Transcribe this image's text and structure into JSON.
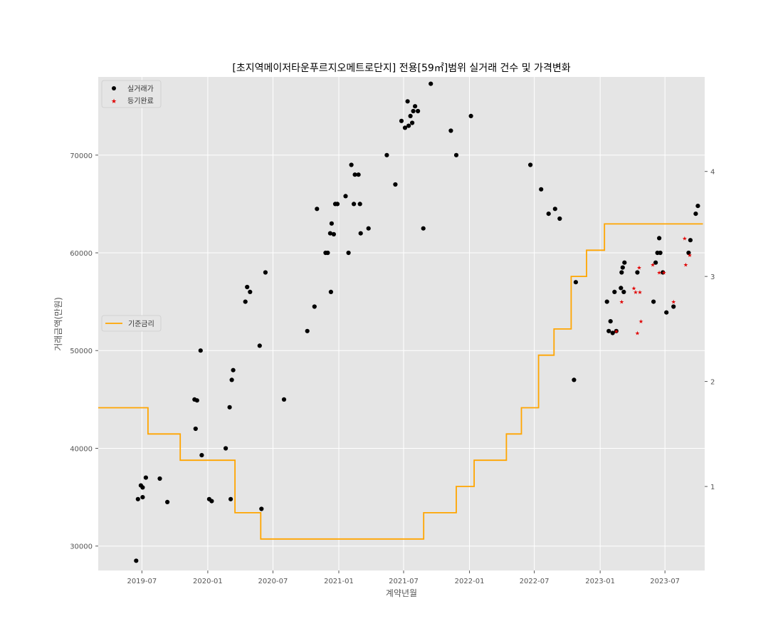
{
  "chart_data": {
    "type": "scatter",
    "title": "[초지역메이저타운푸르지오메트로단지] 전용[59㎡]범위 실거래 건수 및 가격변화",
    "xlabel": "계약년월",
    "ylabel": "거래금액(만원)",
    "x_range": [
      "2019-03-01",
      "2023-10-20"
    ],
    "ylim": [
      27500,
      78000
    ],
    "y2lim": [
      0.2,
      4.9
    ],
    "grid": true,
    "x_ticks": [
      "2019-07",
      "2020-01",
      "2020-07",
      "2021-01",
      "2021-07",
      "2022-01",
      "2022-07",
      "2023-01",
      "2023-07"
    ],
    "y_ticks": [
      30000,
      40000,
      50000,
      60000,
      70000
    ],
    "y2_ticks": [
      1,
      2,
      3,
      4
    ],
    "legend_left": {
      "position": "upper-left",
      "items": [
        "실거래가",
        "등기완료"
      ]
    },
    "legend_right": {
      "position": "center-left",
      "items": [
        "기준금리"
      ]
    },
    "colors": {
      "transactions": "#000000",
      "registered": "#e00000",
      "rate": "#ffa500",
      "plot_bg": "#e5e5e5",
      "grid": "#ffffff"
    },
    "series": [
      {
        "name": "실거래가",
        "kind": "scatter",
        "points": [
          [
            "2019-06-15",
            28500
          ],
          [
            "2019-06-20",
            34800
          ],
          [
            "2019-06-28",
            36200
          ],
          [
            "2019-07-03",
            35000
          ],
          [
            "2019-07-03",
            36000
          ],
          [
            "2019-07-12",
            37000
          ],
          [
            "2019-08-20",
            36900
          ],
          [
            "2019-09-10",
            34500
          ],
          [
            "2019-11-25",
            45000
          ],
          [
            "2019-11-28",
            42000
          ],
          [
            "2019-12-02",
            44900
          ],
          [
            "2019-12-12",
            50000
          ],
          [
            "2019-12-15",
            39300
          ],
          [
            "2020-01-05",
            34800
          ],
          [
            "2020-01-12",
            34600
          ],
          [
            "2020-02-20",
            40000
          ],
          [
            "2020-03-02",
            44200
          ],
          [
            "2020-03-05",
            34800
          ],
          [
            "2020-03-08",
            47000
          ],
          [
            "2020-03-12",
            48000
          ],
          [
            "2020-04-15",
            55000
          ],
          [
            "2020-04-20",
            56500
          ],
          [
            "2020-04-28",
            56000
          ],
          [
            "2020-05-25",
            50500
          ],
          [
            "2020-05-30",
            33800
          ],
          [
            "2020-06-10",
            58000
          ],
          [
            "2020-08-01",
            45000
          ],
          [
            "2020-10-05",
            52000
          ],
          [
            "2020-10-25",
            54500
          ],
          [
            "2020-11-01",
            64500
          ],
          [
            "2020-11-25",
            60000
          ],
          [
            "2020-12-01",
            60000
          ],
          [
            "2020-12-08",
            62000
          ],
          [
            "2020-12-10",
            56000
          ],
          [
            "2020-12-12",
            63000
          ],
          [
            "2020-12-18",
            61900
          ],
          [
            "2020-12-22",
            65000
          ],
          [
            "2020-12-28",
            65000
          ],
          [
            "2021-01-20",
            65800
          ],
          [
            "2021-01-28",
            60000
          ],
          [
            "2021-02-05",
            69000
          ],
          [
            "2021-02-12",
            65000
          ],
          [
            "2021-02-15",
            68000
          ],
          [
            "2021-02-25",
            68000
          ],
          [
            "2021-03-01",
            65000
          ],
          [
            "2021-03-03",
            62000
          ],
          [
            "2021-03-25",
            62500
          ],
          [
            "2021-05-15",
            70000
          ],
          [
            "2021-06-08",
            67000
          ],
          [
            "2021-06-25",
            73500
          ],
          [
            "2021-07-05",
            72800
          ],
          [
            "2021-07-12",
            75500
          ],
          [
            "2021-07-15",
            73000
          ],
          [
            "2021-07-20",
            74000
          ],
          [
            "2021-07-25",
            73300
          ],
          [
            "2021-07-28",
            74500
          ],
          [
            "2021-08-02",
            75000
          ],
          [
            "2021-08-10",
            74500
          ],
          [
            "2021-08-25",
            62500
          ],
          [
            "2021-09-15",
            77300
          ],
          [
            "2021-11-10",
            72500
          ],
          [
            "2021-11-25",
            70000
          ],
          [
            "2022-01-05",
            74000
          ],
          [
            "2022-06-20",
            69000
          ],
          [
            "2022-07-20",
            66500
          ],
          [
            "2022-08-10",
            64000
          ],
          [
            "2022-08-28",
            64500
          ],
          [
            "2022-09-10",
            63500
          ],
          [
            "2022-10-20",
            47000
          ],
          [
            "2022-10-25",
            57000
          ],
          [
            "2023-01-20",
            55000
          ],
          [
            "2023-01-25",
            52000
          ],
          [
            "2023-01-30",
            53000
          ],
          [
            "2023-02-05",
            51800
          ],
          [
            "2023-02-10",
            56000
          ],
          [
            "2023-02-15",
            52000
          ],
          [
            "2023-02-28",
            56400
          ],
          [
            "2023-03-02",
            58000
          ],
          [
            "2023-03-05",
            58500
          ],
          [
            "2023-03-08",
            56000
          ],
          [
            "2023-03-10",
            59000
          ],
          [
            "2023-04-15",
            58000
          ],
          [
            "2023-05-30",
            55000
          ],
          [
            "2023-06-05",
            59000
          ],
          [
            "2023-06-10",
            60000
          ],
          [
            "2023-06-15",
            61500
          ],
          [
            "2023-06-18",
            60000
          ],
          [
            "2023-06-25",
            58000
          ],
          [
            "2023-07-05",
            53900
          ],
          [
            "2023-07-25",
            54500
          ],
          [
            "2023-09-05",
            60000
          ],
          [
            "2023-09-10",
            61300
          ],
          [
            "2023-09-25",
            64000
          ],
          [
            "2023-10-01",
            64800
          ]
        ]
      },
      {
        "name": "등기완료",
        "kind": "scatter",
        "points": [
          [
            "2023-02-15",
            52000
          ],
          [
            "2023-03-02",
            55000
          ],
          [
            "2023-04-05",
            56400
          ],
          [
            "2023-04-10",
            56000
          ],
          [
            "2023-04-15",
            51800
          ],
          [
            "2023-04-20",
            58500
          ],
          [
            "2023-04-22",
            56000
          ],
          [
            "2023-04-25",
            53000
          ],
          [
            "2023-05-28",
            58800
          ],
          [
            "2023-06-15",
            58000
          ],
          [
            "2023-06-28",
            58000
          ],
          [
            "2023-07-25",
            55000
          ],
          [
            "2023-08-25",
            61500
          ],
          [
            "2023-08-28",
            58800
          ],
          [
            "2023-09-08",
            59800
          ]
        ]
      },
      {
        "name": "기준금리",
        "kind": "step",
        "axis": "right",
        "points": [
          [
            "2019-03-01",
            1.75
          ],
          [
            "2019-07-18",
            1.5
          ],
          [
            "2019-10-16",
            1.25
          ],
          [
            "2020-03-17",
            0.75
          ],
          [
            "2020-05-28",
            0.5
          ],
          [
            "2021-08-26",
            0.75
          ],
          [
            "2021-11-25",
            1.0
          ],
          [
            "2022-01-14",
            1.25
          ],
          [
            "2022-04-14",
            1.5
          ],
          [
            "2022-05-26",
            1.75
          ],
          [
            "2022-07-13",
            2.25
          ],
          [
            "2022-08-25",
            2.5
          ],
          [
            "2022-10-12",
            3.0
          ],
          [
            "2022-11-24",
            3.25
          ],
          [
            "2023-01-13",
            3.5
          ],
          [
            "2023-10-15",
            3.5
          ]
        ]
      }
    ]
  }
}
